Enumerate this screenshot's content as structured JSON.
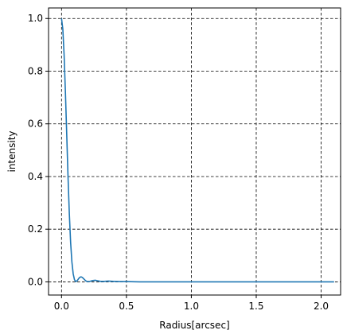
{
  "chart_data": {
    "type": "line",
    "title": "",
    "xlabel": "Radius[arcsec]",
    "ylabel": "intensity",
    "xlim": [
      -0.1,
      2.15
    ],
    "ylim": [
      -0.05,
      1.04
    ],
    "x_ticks": [
      0.0,
      0.5,
      1.0,
      1.5,
      2.0
    ],
    "x_tick_labels": [
      "0.0",
      "0.5",
      "1.0",
      "1.5",
      "2.0"
    ],
    "y_ticks": [
      0.0,
      0.2,
      0.4,
      0.6,
      0.8,
      1.0
    ],
    "y_tick_labels": [
      "0.0",
      "0.2",
      "0.4",
      "0.6",
      "0.8",
      "1.0"
    ],
    "grid": true,
    "line_color": "#1f77b4",
    "series": [
      {
        "x": [
          0.0,
          0.01,
          0.02,
          0.03,
          0.04,
          0.05,
          0.06,
          0.07,
          0.08,
          0.09,
          0.1,
          0.11,
          0.12,
          0.13,
          0.14,
          0.15,
          0.16,
          0.17,
          0.18,
          0.19,
          0.2,
          0.22,
          0.24,
          0.26,
          0.28,
          0.3,
          0.33,
          0.36,
          0.4,
          0.45,
          0.5,
          0.6,
          0.8,
          1.0,
          1.2,
          1.5,
          1.8,
          2.1
        ],
        "y": [
          1.0,
          0.96,
          0.86,
          0.72,
          0.56,
          0.4,
          0.26,
          0.15,
          0.075,
          0.03,
          0.008,
          0.001,
          0.004,
          0.011,
          0.017,
          0.019,
          0.017,
          0.012,
          0.007,
          0.003,
          0.001,
          0.002,
          0.005,
          0.006,
          0.004,
          0.002,
          0.002,
          0.003,
          0.002,
          0.001,
          0.001,
          0.0,
          0.0,
          0.0,
          0.0,
          0.0,
          0.0,
          0.0
        ]
      }
    ]
  }
}
